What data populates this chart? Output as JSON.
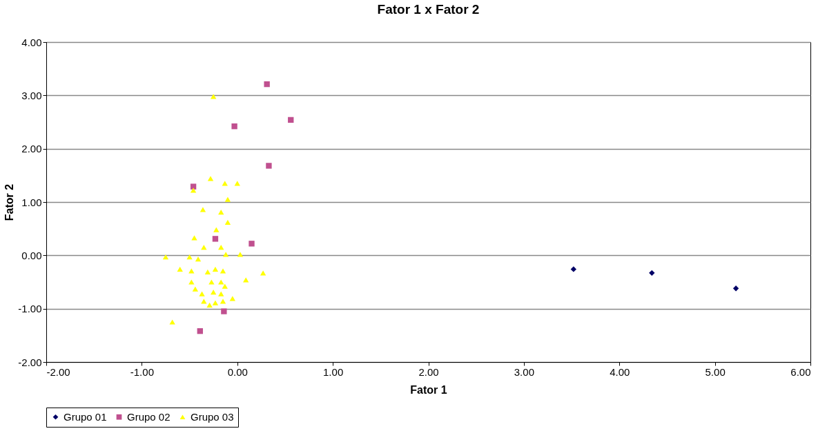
{
  "chart_data": {
    "type": "scatter",
    "title": "Fator 1 x Fator 2",
    "xlabel": "Fator 1",
    "ylabel": "Fator 2",
    "xlim": [
      -2,
      6
    ],
    "xticks": [
      {
        "value": -2,
        "label": "-2.00"
      },
      {
        "value": -1,
        "label": "-1.00"
      },
      {
        "value": 0,
        "label": "0.00"
      },
      {
        "value": 1,
        "label": "1.00"
      },
      {
        "value": 2,
        "label": "2.00"
      },
      {
        "value": 3,
        "label": "3.00"
      },
      {
        "value": 4,
        "label": "4.00"
      },
      {
        "value": 5,
        "label": "5.00"
      },
      {
        "value": 6,
        "label": "6.00"
      }
    ],
    "ylim": [
      -2,
      4
    ],
    "yticks": [
      {
        "value": -2,
        "label": "-2.00"
      },
      {
        "value": -1,
        "label": "-1.00"
      },
      {
        "value": 0,
        "label": "0.00"
      },
      {
        "value": 1,
        "label": "1.00"
      },
      {
        "value": 2,
        "label": "2.00"
      },
      {
        "value": 3,
        "label": "3.00"
      },
      {
        "value": 4,
        "label": "4.00"
      }
    ],
    "grid": "y",
    "legend": "bottom",
    "series": [
      {
        "name": "Grupo 01",
        "color": "#000066",
        "marker": "diamond",
        "x": [
          3.52,
          4.34,
          5.22
        ],
        "values": [
          -0.26,
          -0.33,
          -0.62
        ]
      },
      {
        "name": "Grupo 02",
        "color": "#c0508f",
        "marker": "square",
        "x": [
          0.31,
          -0.03,
          0.56,
          0.33,
          -0.46,
          -0.23,
          0.15,
          -0.14,
          -0.39
        ],
        "values": [
          3.21,
          2.42,
          2.54,
          1.68,
          1.29,
          0.31,
          0.22,
          -1.05,
          -1.42
        ]
      },
      {
        "name": "Grupo 03",
        "color": "#ffff00",
        "marker": "triangle",
        "x": [
          -0.25,
          -0.28,
          -0.13,
          0.0,
          -0.46,
          -0.1,
          -0.36,
          -0.17,
          -0.1,
          -0.22,
          -0.45,
          -0.35,
          -0.17,
          -0.12,
          0.03,
          -0.75,
          -0.5,
          -0.41,
          -0.6,
          0.27,
          0.09,
          -0.31,
          -0.23,
          -0.15,
          -0.48,
          -0.48,
          -0.27,
          -0.17,
          -0.13,
          -0.44,
          -0.37,
          -0.25,
          -0.17,
          -0.05,
          -0.35,
          -0.23,
          -0.15,
          -0.29,
          -0.68
        ],
        "values": [
          2.98,
          1.44,
          1.35,
          1.35,
          1.22,
          1.05,
          0.86,
          0.81,
          0.62,
          0.48,
          0.33,
          0.15,
          0.15,
          0.02,
          0.02,
          -0.03,
          -0.03,
          -0.07,
          -0.26,
          -0.33,
          -0.46,
          -0.31,
          -0.26,
          -0.29,
          -0.29,
          -0.5,
          -0.5,
          -0.5,
          -0.58,
          -0.63,
          -0.72,
          -0.69,
          -0.72,
          -0.81,
          -0.86,
          -0.89,
          -0.86,
          -0.93,
          -1.25
        ]
      }
    ]
  }
}
